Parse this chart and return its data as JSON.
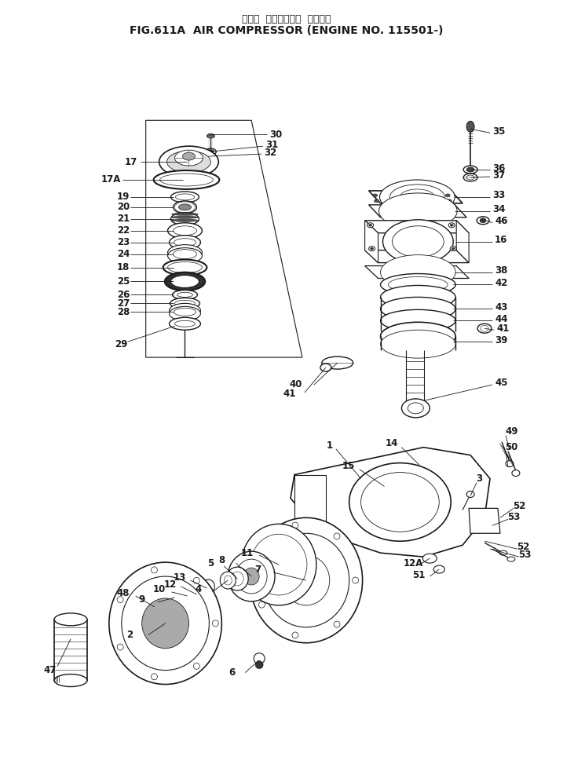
{
  "title_line1": "エアー  コンプレッサ  適用号機",
  "title_line2": "FIG.611A  AIR COMPRESSOR (ENGINE NO. 115501-)",
  "bg_color": "#ffffff",
  "line_color": "#1a1a1a",
  "fig_width": 7.31,
  "fig_height": 9.73,
  "dpi": 100
}
